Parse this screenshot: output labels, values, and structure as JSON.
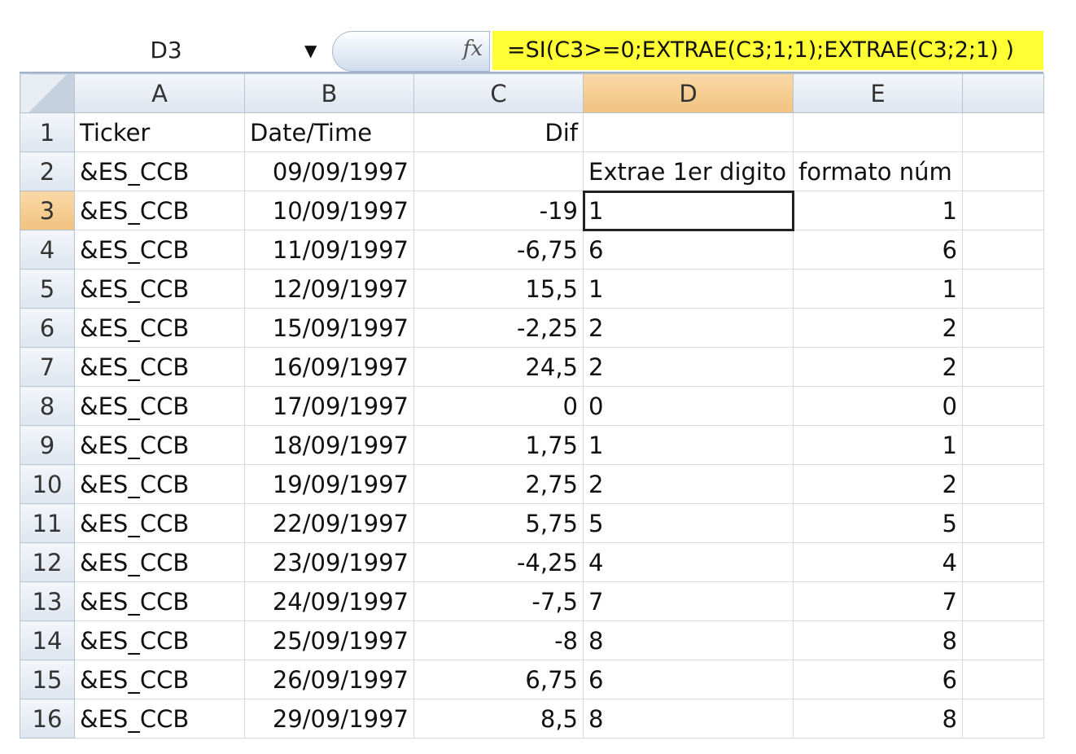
{
  "formula_bar": {
    "name_box": "D3",
    "fx_icon": "fx-icon",
    "formula": "=SI(C3>=0;EXTRAE(C3;1;1);EXTRAE(C3;2;1) )",
    "formula_highlight": "#ffff33"
  },
  "columns": [
    "A",
    "B",
    "C",
    "D",
    "E",
    ""
  ],
  "selected_column": "D",
  "selected_row": "3",
  "active_cell": "D3",
  "rows": [
    {
      "n": "1",
      "A": "Ticker",
      "B": "Date/Time",
      "C": "Dif",
      "D": "",
      "E": ""
    },
    {
      "n": "2",
      "A": "&ES_CCB",
      "B": "09/09/1997",
      "C": "",
      "D": "Extrae 1er digito",
      "E": "formato núm"
    },
    {
      "n": "3",
      "A": "&ES_CCB",
      "B": "10/09/1997",
      "C": "-19",
      "D": "1",
      "E": "1"
    },
    {
      "n": "4",
      "A": "&ES_CCB",
      "B": "11/09/1997",
      "C": "-6,75",
      "D": "6",
      "E": "6"
    },
    {
      "n": "5",
      "A": "&ES_CCB",
      "B": "12/09/1997",
      "C": "15,5",
      "D": "1",
      "E": "1"
    },
    {
      "n": "6",
      "A": "&ES_CCB",
      "B": "15/09/1997",
      "C": "-2,25",
      "D": "2",
      "E": "2"
    },
    {
      "n": "7",
      "A": "&ES_CCB",
      "B": "16/09/1997",
      "C": "24,5",
      "D": "2",
      "E": "2"
    },
    {
      "n": "8",
      "A": "&ES_CCB",
      "B": "17/09/1997",
      "C": "0",
      "D": "0",
      "E": "0"
    },
    {
      "n": "9",
      "A": "&ES_CCB",
      "B": "18/09/1997",
      "C": "1,75",
      "D": "1",
      "E": "1"
    },
    {
      "n": "10",
      "A": "&ES_CCB",
      "B": "19/09/1997",
      "C": "2,75",
      "D": "2",
      "E": "2"
    },
    {
      "n": "11",
      "A": "&ES_CCB",
      "B": "22/09/1997",
      "C": "5,75",
      "D": "5",
      "E": "5"
    },
    {
      "n": "12",
      "A": "&ES_CCB",
      "B": "23/09/1997",
      "C": "-4,25",
      "D": "4",
      "E": "4"
    },
    {
      "n": "13",
      "A": "&ES_CCB",
      "B": "24/09/1997",
      "C": "-7,5",
      "D": "7",
      "E": "7"
    },
    {
      "n": "14",
      "A": "&ES_CCB",
      "B": "25/09/1997",
      "C": "-8",
      "D": "8",
      "E": "8"
    },
    {
      "n": "15",
      "A": "&ES_CCB",
      "B": "26/09/1997",
      "C": "6,75",
      "D": "6",
      "E": "6"
    },
    {
      "n": "16",
      "A": "&ES_CCB",
      "B": "29/09/1997",
      "C": "8,5",
      "D": "8",
      "E": "8"
    }
  ]
}
